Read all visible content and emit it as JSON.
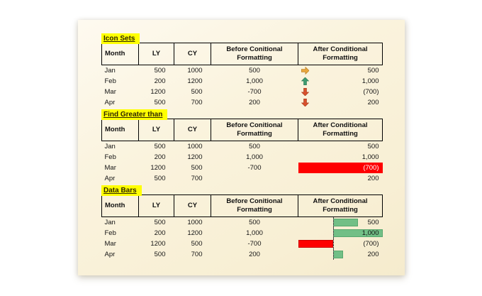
{
  "slide": {
    "background": "#faf3dd"
  },
  "colors": {
    "highlight_yellow": "#ffff00",
    "label_text": "#2f2600",
    "table_border": "#000000",
    "highlight_red_cell": "#fe0000",
    "databar_green": "#72bf86",
    "databar_red": "#fe0000",
    "icon_up_green": "#3e9b70",
    "icon_down_red": "#d8502c",
    "icon_right_amber": "#e8a63d"
  },
  "table_headers": {
    "month": "Month",
    "ly": "LY",
    "cy": "CY",
    "before_line1": "Before Conitional",
    "before_line2": "Formatting",
    "after_line1": "After Conditional",
    "after_line2": "Formatting"
  },
  "sections": [
    {
      "label": "Icon Sets",
      "rows": [
        {
          "month": "Jan",
          "ly": "500",
          "cy": "1000",
          "before": "500",
          "after": "500",
          "icon": "right-arrow"
        },
        {
          "month": "Feb",
          "ly": "200",
          "cy": "1200",
          "before": "1,000",
          "after": "1,000",
          "icon": "up-arrow"
        },
        {
          "month": "Mar",
          "ly": "1200",
          "cy": "500",
          "before": "-700",
          "after": "(700)",
          "icon": "down-arrow"
        },
        {
          "month": "Apr",
          "ly": "500",
          "cy": "700",
          "before": "200",
          "after": "200",
          "icon": "down-arrow"
        }
      ]
    },
    {
      "label": "Find Greater than",
      "rows": [
        {
          "month": "Jan",
          "ly": "500",
          "cy": "1000",
          "before": "500",
          "after": "500",
          "highlighted": false
        },
        {
          "month": "Feb",
          "ly": "200",
          "cy": "1200",
          "before": "1,000",
          "after": "1,000",
          "highlighted": false
        },
        {
          "month": "Mar",
          "ly": "1200",
          "cy": "500",
          "before": "-700",
          "after": "(700)",
          "highlighted": true
        },
        {
          "month": "Apr",
          "ly": "500",
          "cy": "700",
          "before": "",
          "after": "200",
          "highlighted": false
        }
      ]
    },
    {
      "label": "Data Bars",
      "databar": {
        "min": -700,
        "max": 1000
      },
      "rows": [
        {
          "month": "Jan",
          "ly": "500",
          "cy": "1000",
          "before": "500",
          "after": "500",
          "bar_value": 500
        },
        {
          "month": "Feb",
          "ly": "200",
          "cy": "1200",
          "before": "1,000",
          "after": "1,000",
          "bar_value": 1000
        },
        {
          "month": "Mar",
          "ly": "1200",
          "cy": "500",
          "before": "-700",
          "after": "(700)",
          "bar_value": -700
        },
        {
          "month": "Apr",
          "ly": "500",
          "cy": "700",
          "before": "200",
          "after": "200",
          "bar_value": 200
        }
      ]
    }
  ]
}
